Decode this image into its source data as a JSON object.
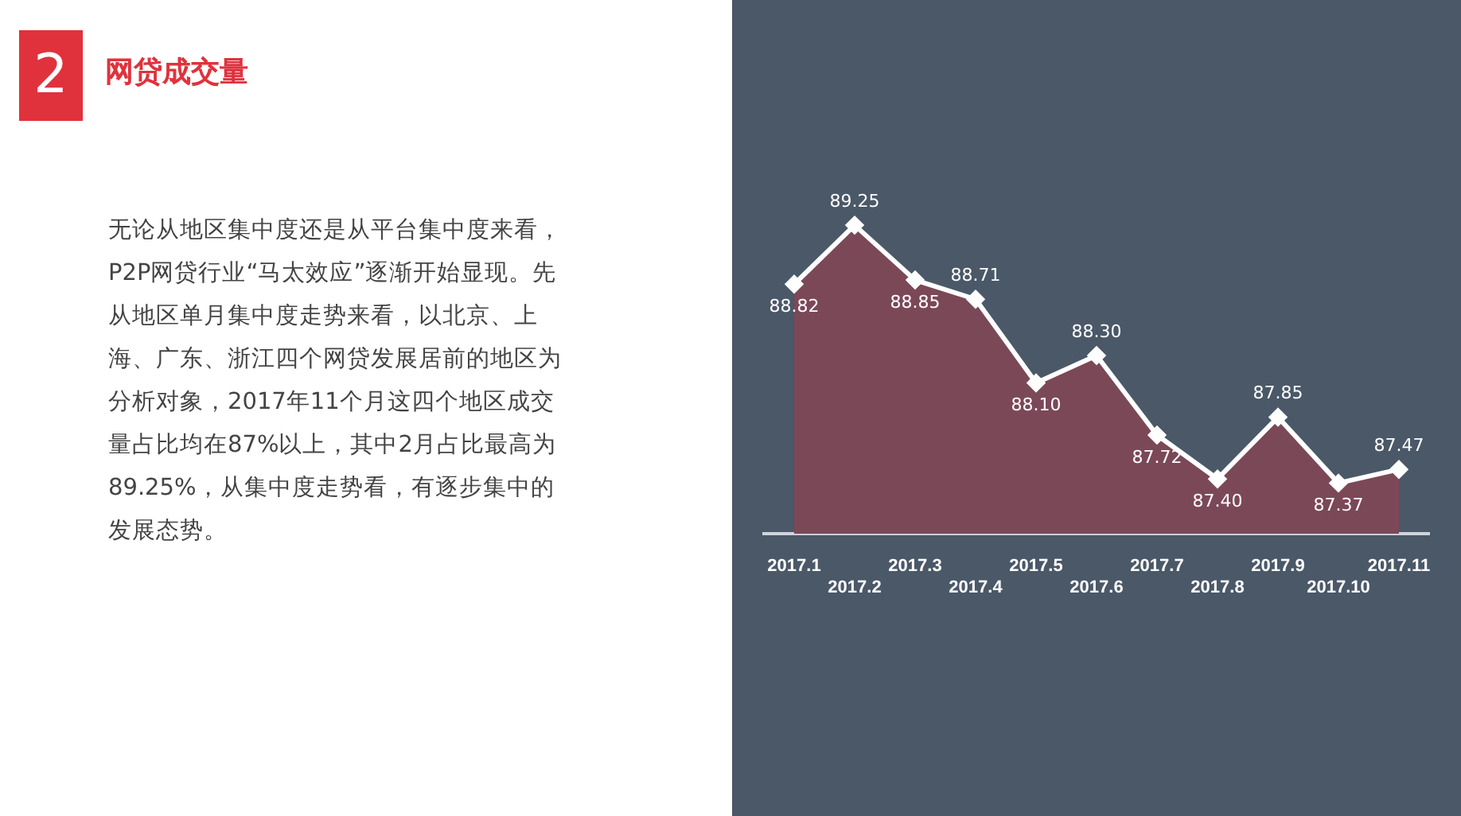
{
  "chart_data": {
    "type": "area",
    "title": "网贷成交量",
    "annotations": [
      "2",
      "无论从地区集中度还是从平台集中度来看，P2P网贷行业“马太效应”逐渐开始显现。先从地区单月集中度走势来看，以北京、上海、广东、浙江四个网贷发展居前的地区为分析对象，2017年11个月这四个地区成交量占比均在87%以上，其中2月占比最高为89.25%，从集中度走势看，有逐步集中的发展态势。"
    ],
    "categories": [
      "2017.1",
      "2017.2",
      "2017.3",
      "2017.4",
      "2017.5",
      "2017.6",
      "2017.7",
      "2017.8",
      "2017.9",
      "2017.10",
      "2017.11"
    ],
    "series": [
      {
        "color": "#7b4858",
        "values": [
          88.82,
          89.25,
          88.85,
          88.71,
          88.1,
          88.3,
          87.72,
          87.4,
          87.85,
          87.37,
          87.47
        ],
        "value_labels": [
          "88.82",
          "89.25",
          "88.85",
          "88.71",
          "88.10",
          "88.30",
          "87.72",
          "87.40",
          "87.85",
          "87.37",
          "87.47"
        ]
      }
    ],
    "tick_labels": "x",
    "marker": "diamond",
    "grid": false,
    "legend": false
  }
}
